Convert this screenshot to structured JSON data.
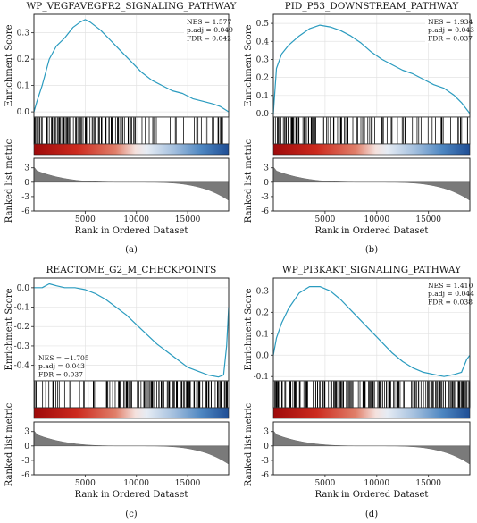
{
  "chart_data": [
    {
      "type": "line",
      "panel_label": "(a)",
      "title": "WP_VEGFAVEGFR2_SIGNALING_PATHWAY",
      "stats": [
        "NES = 1.577",
        "p.adj = 0.049",
        "FDR = 0.042"
      ],
      "stats_position": "top-right",
      "ylabel_top": "Enrichment Score",
      "ylabel_bottom": "Ranked list metric",
      "xlabel": "Rank in Ordered Dataset",
      "xlim": [
        0,
        19000
      ],
      "ylim_top": [
        -0.02,
        0.37
      ],
      "yticks_top": [
        0.0,
        0.1,
        0.2,
        0.3
      ],
      "ytick_labels_top": [
        "0.0",
        "0.1",
        "0.2",
        "0.3"
      ],
      "xticks": [
        5000,
        10000,
        15000
      ],
      "xtick_labels": [
        "5000",
        "10000",
        "15000"
      ],
      "ylim_bottom": [
        -6,
        5
      ],
      "yticks_bottom": [
        3,
        0,
        -3,
        -6
      ],
      "ytick_labels_bottom": [
        "3",
        "0",
        "-3",
        "-6"
      ],
      "es_curve": {
        "x": [
          0,
          300,
          800,
          1500,
          2200,
          3000,
          3800,
          4500,
          5000,
          5500,
          6500,
          7500,
          8500,
          9500,
          10500,
          11500,
          12500,
          13500,
          14500,
          15500,
          16500,
          17500,
          18200,
          19000
        ],
        "y": [
          0.0,
          0.04,
          0.1,
          0.2,
          0.25,
          0.28,
          0.32,
          0.34,
          0.35,
          0.34,
          0.31,
          0.27,
          0.23,
          0.19,
          0.15,
          0.12,
          0.1,
          0.08,
          0.07,
          0.05,
          0.04,
          0.03,
          0.02,
          0.0
        ]
      },
      "hits_dense_regions": [
        [
          0,
          5000
        ],
        [
          5000,
          11500
        ]
      ],
      "hits_sparse_regions": [
        [
          11500,
          19000
        ]
      ],
      "hit_count": 130
    },
    {
      "type": "line",
      "panel_label": "(b)",
      "title": "PID_P53_DOWNSTREAM_PATHWAY",
      "stats": [
        "NES = 1.934",
        "p.adj = 0.043",
        "FDR = 0.037"
      ],
      "stats_position": "top-right",
      "ylabel_top": "Enrichment Score",
      "ylabel_bottom": "Ranked list metric",
      "xlabel": "Rank in Ordered Dataset",
      "xlim": [
        0,
        19000
      ],
      "ylim_top": [
        -0.02,
        0.55
      ],
      "yticks_top": [
        0.0,
        0.1,
        0.2,
        0.3,
        0.4,
        0.5
      ],
      "ytick_labels_top": [
        "0.0",
        "0.1",
        "0.2",
        "0.3",
        "0.4",
        "0.5"
      ],
      "xticks": [
        5000,
        10000,
        15000
      ],
      "xtick_labels": [
        "5000",
        "10000",
        "15000"
      ],
      "ylim_bottom": [
        -6,
        5
      ],
      "yticks_bottom": [
        3,
        0,
        -3,
        -6
      ],
      "ytick_labels_bottom": [
        "3",
        "0",
        "-3",
        "-6"
      ],
      "es_curve": {
        "x": [
          0,
          300,
          800,
          1500,
          2500,
          3500,
          4500,
          5500,
          6500,
          7500,
          8500,
          9500,
          10500,
          11500,
          12500,
          13500,
          14500,
          15500,
          16500,
          17500,
          18200,
          19000
        ],
        "y": [
          0.0,
          0.25,
          0.33,
          0.38,
          0.43,
          0.47,
          0.49,
          0.48,
          0.46,
          0.43,
          0.39,
          0.34,
          0.3,
          0.27,
          0.24,
          0.22,
          0.19,
          0.16,
          0.14,
          0.1,
          0.06,
          0.0
        ]
      },
      "hits_dense_regions": [
        [
          0,
          4500
        ],
        [
          4500,
          13000
        ]
      ],
      "hits_sparse_regions": [
        [
          13000,
          19000
        ]
      ],
      "hit_count": 110
    },
    {
      "type": "line",
      "panel_label": "(c)",
      "title": "REACTOME_G2_M_CHECKPOINTS",
      "stats": [
        "NES = −1.705",
        "p.adj = 0.043",
        "FDR = 0.037"
      ],
      "stats_position": "bottom-left",
      "ylabel_top": "Enrichment Score",
      "ylabel_bottom": "Ranked list metric",
      "xlabel": "Rank in Ordered Dataset",
      "xlim": [
        0,
        19000
      ],
      "ylim_top": [
        -0.48,
        0.05
      ],
      "yticks_top": [
        0.0,
        -0.1,
        -0.2,
        -0.3,
        -0.4
      ],
      "ytick_labels_top": [
        "0.0",
        "-0.1",
        "-0.2",
        "-0.3",
        "-0.4"
      ],
      "xticks": [
        5000,
        10000,
        15000
      ],
      "xtick_labels": [
        "5000",
        "10000",
        "15000"
      ],
      "ylim_bottom": [
        -6,
        5
      ],
      "yticks_bottom": [
        3,
        0,
        -3,
        -6
      ],
      "ytick_labels_bottom": [
        "3",
        "0",
        "-3",
        "-6"
      ],
      "es_curve": {
        "x": [
          0,
          800,
          1500,
          2200,
          3000,
          4000,
          5000,
          6000,
          7000,
          8000,
          9000,
          10000,
          11000,
          12000,
          13000,
          14000,
          15000,
          16000,
          17000,
          18000,
          18500,
          18800,
          19000
        ],
        "y": [
          0.0,
          0.0,
          0.02,
          0.01,
          0.0,
          0.0,
          -0.01,
          -0.03,
          -0.06,
          -0.1,
          -0.14,
          -0.19,
          -0.24,
          -0.29,
          -0.33,
          -0.37,
          -0.41,
          -0.43,
          -0.45,
          -0.46,
          -0.45,
          -0.3,
          -0.1
        ]
      },
      "hits_dense_regions": [
        [
          7000,
          19000
        ]
      ],
      "hits_sparse_regions": [
        [
          0,
          7000
        ]
      ],
      "hit_count": 140
    },
    {
      "type": "line",
      "panel_label": "(d)",
      "title": "WP_PI3KAKT_SIGNALING_PATHWAY",
      "stats": [
        "NES = 1.410",
        "p.adj = 0.044",
        "FDR = 0.038"
      ],
      "stats_position": "top-right",
      "ylabel_top": "Enrichment Score",
      "ylabel_bottom": "Ranked list metric",
      "xlabel": "Rank in Ordered Dataset",
      "xlim": [
        0,
        19000
      ],
      "ylim_top": [
        -0.12,
        0.36
      ],
      "yticks_top": [
        0.3,
        0.2,
        0.1,
        0.0,
        -0.1
      ],
      "ytick_labels_top": [
        "0.3",
        "0.2",
        "0.1",
        "0.0",
        "-0.1"
      ],
      "xticks": [
        5000,
        10000,
        15000
      ],
      "xtick_labels": [
        "5000",
        "10000",
        "15000"
      ],
      "ylim_bottom": [
        -6,
        5
      ],
      "yticks_bottom": [
        3,
        0,
        -3,
        -6
      ],
      "ytick_labels_bottom": [
        "3",
        "0",
        "-3",
        "-6"
      ],
      "es_curve": {
        "x": [
          0,
          300,
          800,
          1500,
          2500,
          3500,
          4500,
          5500,
          6500,
          7500,
          8500,
          9500,
          10500,
          11500,
          12500,
          13500,
          14500,
          15500,
          16500,
          17500,
          18200,
          18700,
          19000
        ],
        "y": [
          0.0,
          0.08,
          0.15,
          0.22,
          0.29,
          0.32,
          0.32,
          0.3,
          0.26,
          0.21,
          0.16,
          0.11,
          0.06,
          0.01,
          -0.03,
          -0.06,
          -0.08,
          -0.09,
          -0.1,
          -0.09,
          -0.08,
          -0.02,
          0.0
        ]
      },
      "hits_dense_regions": [
        [
          0,
          19000
        ]
      ],
      "hits_sparse_regions": [],
      "hit_count": 230
    }
  ]
}
